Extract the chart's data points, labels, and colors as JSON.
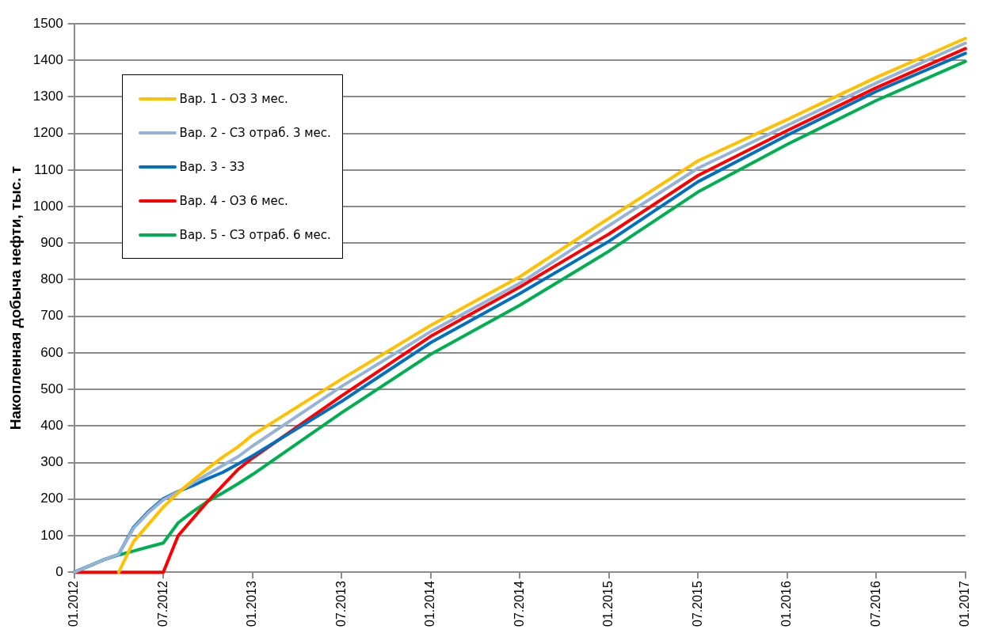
{
  "chart_data": {
    "type": "line",
    "ylabel": "Накопленная добыча нефти, тыс. т",
    "x": [
      "2012-01",
      "2012-02",
      "2012-03",
      "2012-04",
      "2012-05",
      "2012-06",
      "2012-07",
      "2012-08",
      "2012-09",
      "2012-10",
      "2012-11",
      "2012-12",
      "2013-01",
      "2013-07",
      "2014-01",
      "2014-07",
      "2015-01",
      "2015-07",
      "2016-01",
      "2016-07",
      "2017-01"
    ],
    "series": [
      {
        "name": "Вар. 1 - ОЗ 3 мес.",
        "color": "#ffc000",
        "values": [
          null,
          null,
          null,
          0,
          84,
          131,
          178,
          217,
          252,
          284,
          315,
          342,
          375,
          528,
          675,
          808,
          968,
          1125,
          1238,
          1353,
          1460
        ]
      },
      {
        "name": "Вар. 2 - СЗ отраб. 3 мес.",
        "color": "#95b3d7",
        "values": [
          0,
          17,
          34,
          49,
          120,
          163,
          198,
          220,
          245,
          268,
          292,
          315,
          345,
          508,
          658,
          790,
          948,
          1105,
          1222,
          1338,
          1447
        ]
      },
      {
        "name": "Вар. 3 - ЗЗ",
        "color": "#0070c0",
        "values": [
          0,
          17,
          34,
          49,
          123,
          166,
          201,
          221,
          237,
          256,
          273,
          295,
          318,
          467,
          628,
          762,
          905,
          1068,
          1195,
          1315,
          1419
        ]
      },
      {
        "name": "Вар. 4 - ОЗ 6 мес.",
        "color": "#ff0000",
        "values": [
          0,
          0,
          0,
          0,
          0,
          0,
          0,
          100,
          147,
          194,
          237,
          280,
          312,
          482,
          645,
          780,
          925,
          1085,
          1208,
          1325,
          1432
        ]
      },
      {
        "name": "Вар. 5 - СЗ отраб. 6 мес.",
        "color": "#00b050",
        "values": [
          0,
          17,
          34,
          47,
          58,
          69,
          80,
          135,
          166,
          194,
          217,
          241,
          267,
          436,
          596,
          730,
          878,
          1040,
          1170,
          1290,
          1397
        ]
      }
    ],
    "xlim": [
      "2012-01",
      "2017-01"
    ],
    "xticks": [
      {
        "value": "2012-01",
        "label": "01.2012"
      },
      {
        "value": "2012-07",
        "label": "07.2012"
      },
      {
        "value": "2013-01",
        "label": "01.2013"
      },
      {
        "value": "2013-07",
        "label": "07.2013"
      },
      {
        "value": "2014-01",
        "label": "01.2014"
      },
      {
        "value": "2014-07",
        "label": "07.2014"
      },
      {
        "value": "2015-01",
        "label": "01.2015"
      },
      {
        "value": "2015-07",
        "label": "07.2015"
      },
      {
        "value": "2016-01",
        "label": "01.2016"
      },
      {
        "value": "2016-07",
        "label": "07.2016"
      },
      {
        "value": "2017-01",
        "label": "01.2017"
      }
    ],
    "ylim": [
      0,
      1500
    ],
    "yticks": [
      0,
      100,
      200,
      300,
      400,
      500,
      600,
      700,
      800,
      900,
      1000,
      1100,
      1200,
      1300,
      1400,
      1500
    ],
    "grid": "y",
    "legend": "top left",
    "marker": "none",
    "line_style": "solid"
  }
}
